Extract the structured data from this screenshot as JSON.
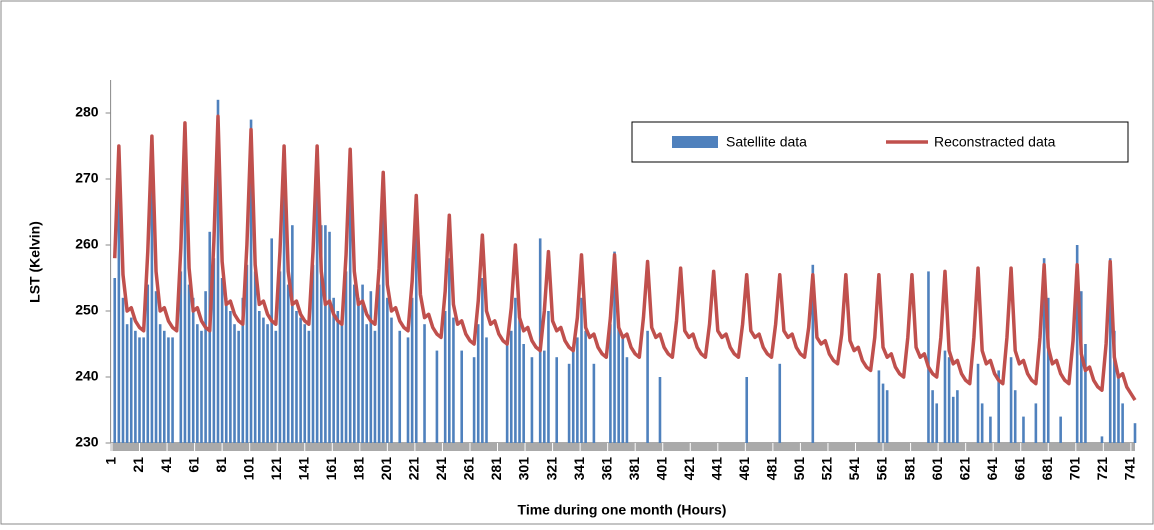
{
  "chart_data": {
    "type": "combo",
    "x_label": "Time during one month (Hours)",
    "y_label": "LST (Kelvin)",
    "xlim": [
      0,
      744
    ],
    "xticks": [
      1,
      21,
      41,
      61,
      81,
      101,
      121,
      141,
      161,
      181,
      201,
      221,
      241,
      261,
      281,
      301,
      321,
      341,
      361,
      381,
      401,
      421,
      441,
      461,
      481,
      501,
      521,
      541,
      561,
      581,
      601,
      621,
      641,
      661,
      681,
      701,
      721,
      741
    ],
    "ylim": [
      230,
      285
    ],
    "yticks": [
      230,
      240,
      250,
      260,
      270,
      280
    ],
    "legend": "top-right",
    "x": [
      3,
      6,
      9,
      12,
      15,
      18,
      21,
      24,
      27,
      30,
      33,
      36,
      39,
      42,
      45,
      48,
      51,
      54,
      57,
      60,
      63,
      66,
      69,
      72,
      75,
      78,
      81,
      84,
      87,
      90,
      93,
      96,
      99,
      102,
      105,
      108,
      111,
      114,
      117,
      120,
      123,
      126,
      129,
      132,
      135,
      138,
      141,
      144,
      147,
      150,
      153,
      156,
      159,
      162,
      165,
      168,
      171,
      174,
      177,
      180,
      183,
      186,
      189,
      192,
      195,
      198,
      201,
      204,
      207,
      210,
      213,
      216,
      219,
      222,
      225,
      228,
      231,
      234,
      237,
      240,
      243,
      246,
      249,
      252,
      255,
      258,
      261,
      264,
      267,
      270,
      273,
      276,
      279,
      282,
      285,
      288,
      291,
      294,
      297,
      300,
      303,
      306,
      309,
      312,
      315,
      318,
      321,
      324,
      327,
      330,
      333,
      336,
      339,
      342,
      345,
      348,
      351,
      354,
      357,
      360,
      363,
      366,
      369,
      372,
      375,
      378,
      381,
      384,
      387,
      390,
      393,
      396,
      399,
      402,
      405,
      408,
      411,
      414,
      417,
      420,
      423,
      426,
      429,
      432,
      435,
      438,
      441,
      444,
      447,
      450,
      453,
      456,
      459,
      462,
      465,
      468,
      471,
      474,
      477,
      480,
      483,
      486,
      489,
      492,
      495,
      498,
      501,
      504,
      507,
      510,
      513,
      516,
      519,
      522,
      525,
      528,
      531,
      534,
      537,
      540,
      543,
      546,
      549,
      552,
      555,
      558,
      561,
      564,
      567,
      570,
      573,
      576,
      579,
      582,
      585,
      588,
      591,
      594,
      597,
      600,
      603,
      606,
      609,
      612,
      615,
      618,
      621,
      624,
      627,
      630,
      633,
      636,
      639,
      642,
      645,
      648,
      651,
      654,
      657,
      660,
      663,
      666,
      669,
      672,
      675,
      678,
      681,
      684,
      687,
      690,
      693,
      696,
      699,
      702,
      705,
      708,
      711,
      714,
      717,
      720,
      723,
      726,
      729,
      732,
      735,
      738,
      741,
      744
    ],
    "series": [
      {
        "name": "Satellite data",
        "type": "bar",
        "color": "#4f81bd",
        "values": [
          255,
          268,
          252,
          248,
          249,
          247,
          246,
          246,
          254,
          270,
          253,
          248,
          247,
          246,
          246,
          null,
          256,
          272,
          254,
          252,
          248,
          247,
          253,
          262,
          258,
          282,
          255,
          252,
          250,
          248,
          247,
          252,
          257,
          279,
          256,
          250,
          249,
          248,
          261,
          247,
          256,
          272,
          254,
          263,
          250,
          249,
          248,
          247,
          257,
          270,
          263,
          263,
          262,
          252,
          250,
          249,
          256,
          269,
          254,
          252,
          254,
          248,
          253,
          247,
          254,
          266,
          252,
          249,
          null,
          247,
          null,
          246,
          252,
          262,
          null,
          248,
          null,
          null,
          244,
          null,
          250,
          258,
          249,
          null,
          244,
          null,
          null,
          243,
          248,
          255,
          246,
          null,
          null,
          null,
          null,
          245,
          247,
          252,
          250,
          245,
          null,
          243,
          null,
          261,
          244,
          250,
          null,
          243,
          null,
          null,
          242,
          244,
          246,
          252,
          247,
          null,
          242,
          null,
          null,
          null,
          248,
          259,
          248,
          246,
          243,
          null,
          null,
          null,
          null,
          247,
          null,
          null,
          240,
          null,
          null,
          null,
          null,
          null,
          null,
          null,
          null,
          null,
          null,
          null,
          null,
          null,
          null,
          null,
          null,
          null,
          null,
          null,
          null,
          240,
          null,
          null,
          null,
          null,
          null,
          null,
          null,
          242,
          null,
          null,
          null,
          null,
          null,
          null,
          null,
          257,
          null,
          null,
          null,
          null,
          null,
          null,
          null,
          null,
          null,
          null,
          null,
          null,
          null,
          null,
          null,
          241,
          239,
          238,
          null,
          null,
          null,
          null,
          null,
          null,
          null,
          null,
          null,
          256,
          238,
          236,
          null,
          244,
          243,
          237,
          238,
          null,
          null,
          null,
          null,
          242,
          236,
          null,
          234,
          null,
          241,
          null,
          null,
          243,
          238,
          null,
          234,
          null,
          null,
          236,
          null,
          258,
          252,
          null,
          null,
          234,
          null,
          null,
          null,
          260,
          253,
          245,
          null,
          null,
          null,
          231,
          null,
          258,
          247,
          240,
          236,
          null,
          null,
          233
        ]
      },
      {
        "name": "Reconstracted data",
        "type": "line",
        "color": "#c0504d",
        "values": [
          258,
          275,
          255.5,
          250,
          250.5,
          248.5,
          247.5,
          247,
          259,
          276.5,
          256,
          250,
          250.5,
          248.5,
          247.5,
          247,
          259.5,
          278.5,
          256.5,
          250,
          250.5,
          248.5,
          247.5,
          247,
          260.5,
          279.5,
          257.5,
          251,
          251.5,
          249.5,
          248.5,
          248,
          260,
          277.5,
          257,
          251,
          251.5,
          249.5,
          248.5,
          248,
          259,
          275,
          256,
          251,
          251.5,
          249.5,
          248.5,
          248,
          259,
          275,
          256,
          251,
          251.5,
          249.5,
          248.5,
          248,
          258.5,
          274.5,
          256,
          251,
          251.5,
          249.5,
          248.5,
          248,
          256.5,
          271,
          254,
          250,
          250.5,
          248.5,
          247.5,
          247,
          254.5,
          267.5,
          252.5,
          249,
          249.5,
          247.5,
          246.5,
          246,
          253,
          264.5,
          251,
          248,
          248.5,
          246.5,
          245.5,
          245,
          251.5,
          261.5,
          250,
          248,
          248.5,
          246.5,
          245.5,
          245,
          250.5,
          260,
          249,
          247,
          247.5,
          245.5,
          244.5,
          244,
          250,
          259,
          248.5,
          247,
          247.5,
          245.5,
          244.5,
          244,
          249,
          258.5,
          247.5,
          246,
          246.5,
          244.5,
          243.5,
          243,
          249,
          258.5,
          247.5,
          246,
          246.5,
          244.5,
          243.5,
          243,
          249,
          257.5,
          247.5,
          246,
          246.5,
          244.5,
          243.5,
          243,
          248.5,
          256.5,
          247,
          246,
          246.5,
          244.5,
          243.5,
          243,
          248,
          256,
          247,
          246,
          246.5,
          244.5,
          243.5,
          243,
          248,
          255.5,
          247,
          246,
          246.5,
          244.5,
          243.5,
          243,
          248,
          255.5,
          247,
          246,
          246.5,
          244.5,
          243.5,
          243,
          247.5,
          255.5,
          246,
          245,
          245.5,
          243.5,
          242.5,
          242,
          246.5,
          255.5,
          245.5,
          244,
          244.5,
          242.5,
          241.5,
          241,
          246,
          255.5,
          244.5,
          243,
          243.5,
          241.5,
          240.5,
          240,
          246,
          255.5,
          244.5,
          243,
          243.5,
          241.5,
          240.5,
          240,
          246,
          256,
          244,
          242,
          242.5,
          240.5,
          239.5,
          239,
          246,
          256.5,
          244,
          242,
          242.5,
          240.5,
          239.5,
          239,
          246,
          256.5,
          244,
          242,
          242.5,
          240.5,
          239.5,
          239,
          246,
          257,
          244.5,
          242,
          242.5,
          240.5,
          239.5,
          239,
          245.5,
          257,
          243.5,
          241,
          241.5,
          239.5,
          238.5,
          238,
          245,
          257.5,
          243,
          240,
          240.5,
          238.5,
          237.5,
          236.5
        ]
      }
    ]
  }
}
